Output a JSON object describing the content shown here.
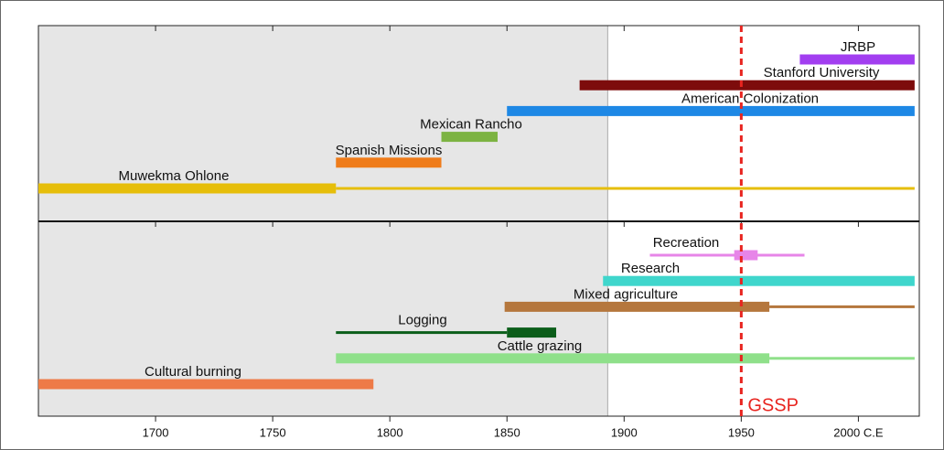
{
  "chart_data": {
    "type": "timeline",
    "xlim": [
      1650,
      2026
    ],
    "xticks": [
      1700,
      1750,
      1800,
      1850,
      1900,
      1950,
      {
        "value": 2000,
        "label": "2000 C.E"
      }
    ],
    "shaded_until": 1893,
    "reference_line": {
      "label": "GSSP",
      "value": 1950,
      "color": "#e8241f"
    },
    "panels": [
      {
        "series": [
          {
            "name": "JRBP",
            "color": "#a23ef0",
            "segments": [
              {
                "start": 1975,
                "end": 2024,
                "style": "thick"
              }
            ]
          },
          {
            "name": "Stanford University",
            "color": "#7d0c0c",
            "segments": [
              {
                "start": 1881,
                "end": 2024,
                "style": "thick"
              }
            ]
          },
          {
            "name": "American Colonization",
            "color": "#1e88e5",
            "segments": [
              {
                "start": 1850,
                "end": 2024,
                "style": "thick"
              }
            ]
          },
          {
            "name": "Mexican Rancho",
            "color": "#7cb342",
            "segments": [
              {
                "start": 1822,
                "end": 1846,
                "style": "thick"
              }
            ]
          },
          {
            "name": "Spanish Missions",
            "color": "#ef7c1a",
            "segments": [
              {
                "start": 1777,
                "end": 1822,
                "style": "thick"
              }
            ]
          },
          {
            "name": "Muwekma Ohlone",
            "color": "#e6be0a",
            "segments": [
              {
                "start": 1650,
                "end": 1777,
                "style": "thick"
              },
              {
                "start": 1777,
                "end": 2024,
                "style": "thin"
              }
            ]
          }
        ]
      },
      {
        "series": [
          {
            "name": "Recreation",
            "color": "#e785e8",
            "segments": [
              {
                "start": 1911,
                "end": 1977,
                "style": "thin"
              },
              {
                "start": 1947,
                "end": 1957,
                "style": "thick"
              }
            ]
          },
          {
            "name": "Research",
            "color": "#3fd6cc",
            "segments": [
              {
                "start": 1891,
                "end": 2024,
                "style": "thick"
              }
            ]
          },
          {
            "name": "Mixed agriculture",
            "color": "#b5773d",
            "segments": [
              {
                "start": 1849,
                "end": 1962,
                "style": "thick"
              },
              {
                "start": 1962,
                "end": 2024,
                "style": "thin"
              }
            ]
          },
          {
            "name": "Logging",
            "color": "#0b5e1a",
            "segments": [
              {
                "start": 1777,
                "end": 1850,
                "style": "thin"
              },
              {
                "start": 1850,
                "end": 1871,
                "style": "thick"
              }
            ]
          },
          {
            "name": "Cattle grazing",
            "color": "#8fe08a",
            "segments": [
              {
                "start": 1777,
                "end": 1962,
                "style": "thick"
              },
              {
                "start": 1962,
                "end": 2024,
                "style": "thin"
              }
            ]
          },
          {
            "name": "Cultural burning",
            "color": "#ee7a47",
            "segments": [
              {
                "start": 1650,
                "end": 1793,
                "style": "thick"
              }
            ]
          }
        ]
      }
    ]
  }
}
